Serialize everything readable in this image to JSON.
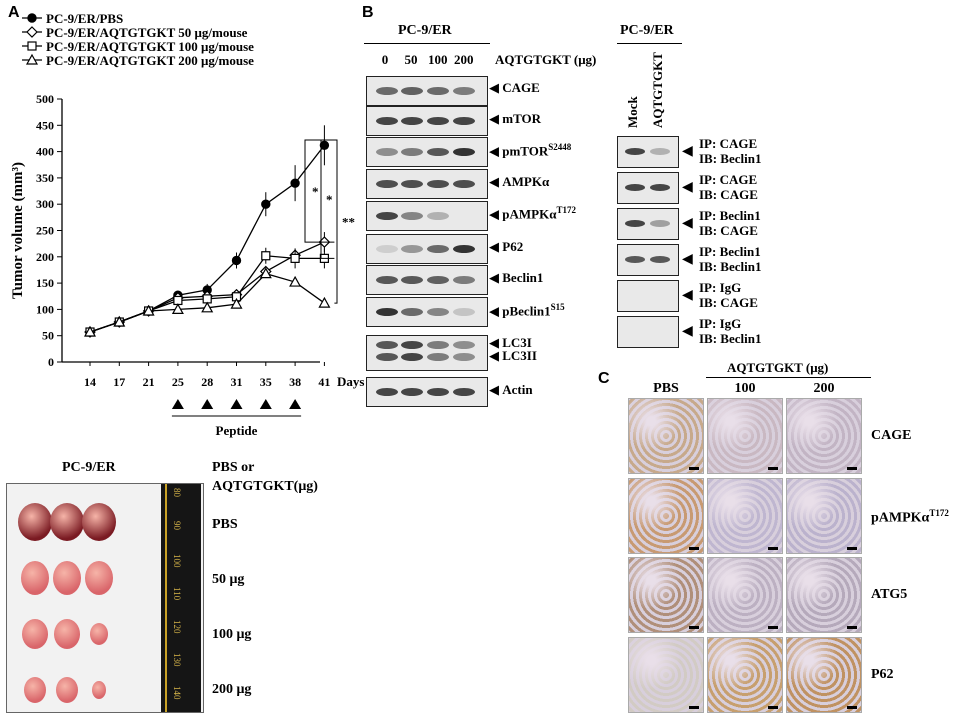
{
  "panels": {
    "a": "A",
    "b": "B",
    "c": "C"
  },
  "chart_data": {
    "type": "line",
    "xlabel": "Days",
    "ylabel": "Tumor volume (mm³)",
    "x": [
      14,
      17,
      21,
      25,
      28,
      31,
      35,
      38,
      41
    ],
    "ylim": [
      0,
      500
    ],
    "yticks": [
      0,
      50,
      100,
      150,
      200,
      250,
      300,
      350,
      400,
      450,
      500
    ],
    "series": [
      {
        "name": "PC-9/ER/PBS",
        "marker": "filled-circle",
        "values": [
          57,
          76,
          97,
          127,
          137,
          193,
          300,
          340,
          412
        ]
      },
      {
        "name": "PC-9/ER/AQTGTGKT 50 μg/mouse",
        "marker": "open-diamond",
        "values": [
          57,
          76,
          97,
          122,
          125,
          128,
          172,
          203,
          228
        ]
      },
      {
        "name": "PC-9/ER/AQTGTGKT 100 μg/mouse",
        "marker": "open-square",
        "values": [
          57,
          76,
          97,
          117,
          120,
          124,
          202,
          197,
          197
        ]
      },
      {
        "name": "PC-9/ER/AQTGTGKT 200 μg/mouse",
        "marker": "open-triangle",
        "values": [
          57,
          76,
          97,
          100,
          103,
          110,
          168,
          152,
          112
        ]
      }
    ],
    "annotations": [
      "*",
      "*",
      "**"
    ],
    "treatment_label": "Peptide",
    "treatment_days": [
      25,
      28,
      31,
      35,
      38
    ]
  },
  "tumor_photo": {
    "title": "PC-9/ER",
    "header": "PBS or AQTGTGKT(μg)",
    "rows": [
      "PBS",
      "50 μg",
      "100 μg",
      "200 μg"
    ],
    "ruler": [
      "80",
      "90",
      "100",
      "110",
      "120",
      "130",
      "140"
    ]
  },
  "western": {
    "cell_line": "PC-9/ER",
    "treatment": "AQTGTGKT (μg)",
    "doses": [
      "0",
      "50",
      "100",
      "200"
    ],
    "rows": [
      {
        "label": "CAGE",
        "sup": ""
      },
      {
        "label": "mTOR",
        "sup": ""
      },
      {
        "label": "pmTOR",
        "sup": "S2448"
      },
      {
        "label": "AMPKα",
        "sup": ""
      },
      {
        "label": "pAMPKα",
        "sup": "T172"
      },
      {
        "label": "P62",
        "sup": ""
      },
      {
        "label": "Beclin1",
        "sup": ""
      },
      {
        "label": "pBeclin1",
        "sup": "S15"
      },
      {
        "label": "LC3I",
        "sup": ""
      },
      {
        "label": "LC3II",
        "sup": ""
      },
      {
        "label": "Actin",
        "sup": ""
      }
    ]
  },
  "ip": {
    "cell_line": "PC-9/ER",
    "lanes": [
      "Mock",
      "AQTGTGKT"
    ],
    "rows": [
      {
        "ip": "IP: CAGE",
        "ib": "IB: Beclin1"
      },
      {
        "ip": "IP: CAGE",
        "ib": "IB: CAGE"
      },
      {
        "ip": "IP: Beclin1",
        "ib": "IB: CAGE"
      },
      {
        "ip": "IP: Beclin1",
        "ib": "IB: Beclin1"
      },
      {
        "ip": "IP: IgG",
        "ib": "IB: CAGE"
      },
      {
        "ip": "IP: IgG",
        "ib": "IB: Beclin1"
      }
    ]
  },
  "ihc": {
    "treatment": "AQTGTGKT (μg)",
    "columns": [
      "PBS",
      "100",
      "200"
    ],
    "rows": [
      {
        "label": "CAGE",
        "sup": ""
      },
      {
        "label": "pAMPKα",
        "sup": "T172"
      },
      {
        "label": "ATG5",
        "sup": ""
      },
      {
        "label": "P62",
        "sup": ""
      }
    ]
  }
}
